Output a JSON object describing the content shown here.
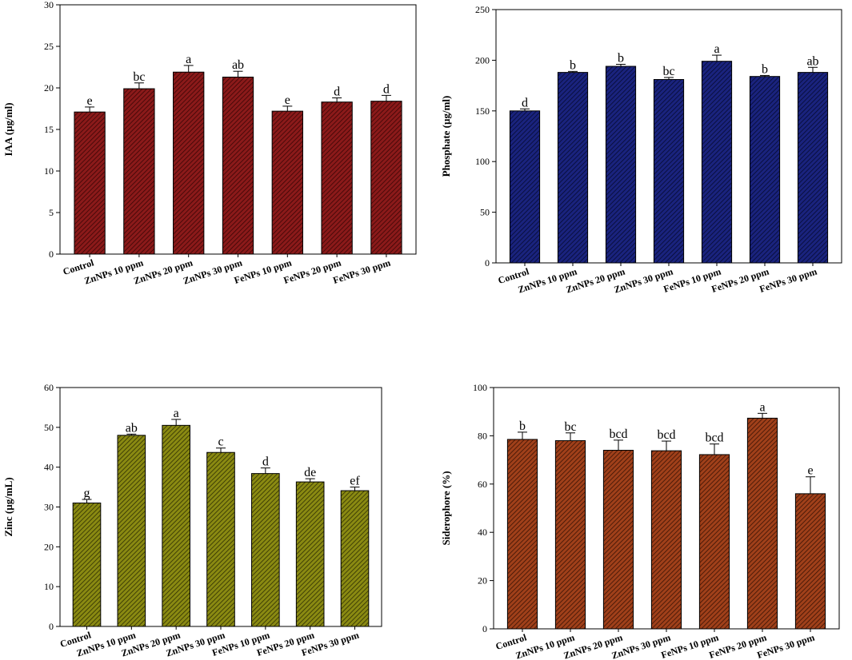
{
  "chart_data": [
    {
      "id": "iaa",
      "type": "bar",
      "title": "",
      "xlabel": "",
      "ylabel": "IAA (µg/ml)",
      "ylim": [
        0,
        30
      ],
      "yticks": [
        0,
        5,
        10,
        15,
        20,
        25,
        30
      ],
      "categories": [
        "Control",
        "ZnNPs 10 ppm",
        "ZnNPs 20 ppm",
        "ZnNPs 30 ppm",
        "FeNPs 10 ppm",
        "FeNPs 20 ppm",
        "FeNPs 30 ppm"
      ],
      "values": [
        17.1,
        19.9,
        21.9,
        21.3,
        17.2,
        18.3,
        18.4
      ],
      "errors": [
        0.6,
        0.7,
        0.8,
        0.7,
        0.6,
        0.5,
        0.7
      ],
      "significance": [
        "e",
        "bc",
        "a",
        "ab",
        "e",
        "d",
        "d"
      ],
      "color": "#8b1a1a",
      "hatch_color": "#3a0505"
    },
    {
      "id": "phosphate",
      "type": "bar",
      "title": "",
      "xlabel": "",
      "ylabel": "Phosphate (µg/ml)",
      "ylim": [
        0,
        250
      ],
      "yticks": [
        0,
        50,
        100,
        150,
        200,
        250
      ],
      "categories": [
        "Control",
        "ZnNPs 10 ppm",
        "ZnNPs 20 ppm",
        "ZnNPs 30 ppm",
        "FeNPs 10 ppm",
        "FeNPs 20 ppm",
        "FeNPs 30 ppm"
      ],
      "values": [
        150,
        188,
        194,
        181,
        199,
        184,
        188
      ],
      "errors": [
        2,
        1,
        2,
        2,
        6,
        1,
        5
      ],
      "significance": [
        "d",
        "b",
        "b",
        "bc",
        "a",
        "b",
        "ab"
      ],
      "color": "#1a237e",
      "hatch_color": "#050a30"
    },
    {
      "id": "zinc",
      "type": "bar",
      "title": "",
      "xlabel": "",
      "ylabel": "Zinc (µg/mL)",
      "ylim": [
        0,
        60
      ],
      "yticks": [
        0,
        10,
        20,
        30,
        40,
        50,
        60
      ],
      "categories": [
        "Control",
        "ZnNPs 10 ppm",
        "ZnNPs 20 ppm",
        "ZnNPs 30 ppm",
        "FeNPs 10 ppm",
        "FeNPs 20 ppm",
        "FeNPs 30 ppm"
      ],
      "values": [
        31,
        48,
        50.5,
        43.7,
        38.4,
        36.3,
        34.1
      ],
      "errors": [
        0.9,
        0.3,
        1.5,
        1.1,
        1.4,
        0.8,
        0.9
      ],
      "significance": [
        "g",
        "ab",
        "a",
        "c",
        "d",
        "de",
        "ef"
      ],
      "color": "#8a8a12",
      "hatch_color": "#2e2e02"
    },
    {
      "id": "siderophore",
      "type": "bar",
      "title": "",
      "xlabel": "",
      "ylabel": "Siderophore (%)",
      "ylim": [
        0,
        100
      ],
      "yticks": [
        0,
        20,
        40,
        60,
        80,
        100
      ],
      "categories": [
        "Control",
        "ZnNPs 10 ppm",
        "ZnNPs 20 ppm",
        "ZnNPs 30 ppm",
        "FeNPs 10 ppm",
        "FeNPs 20 ppm",
        "FeNPs 30 ppm"
      ],
      "values": [
        78.5,
        78,
        74,
        73.8,
        72.2,
        87.3,
        56
      ],
      "errors": [
        3,
        3.2,
        4.2,
        4,
        4.4,
        2,
        7
      ],
      "significance": [
        "b",
        "bc",
        "bcd",
        "bcd",
        "bcd",
        "a",
        "e"
      ],
      "color": "#a0401a",
      "hatch_color": "#3a1204"
    }
  ]
}
